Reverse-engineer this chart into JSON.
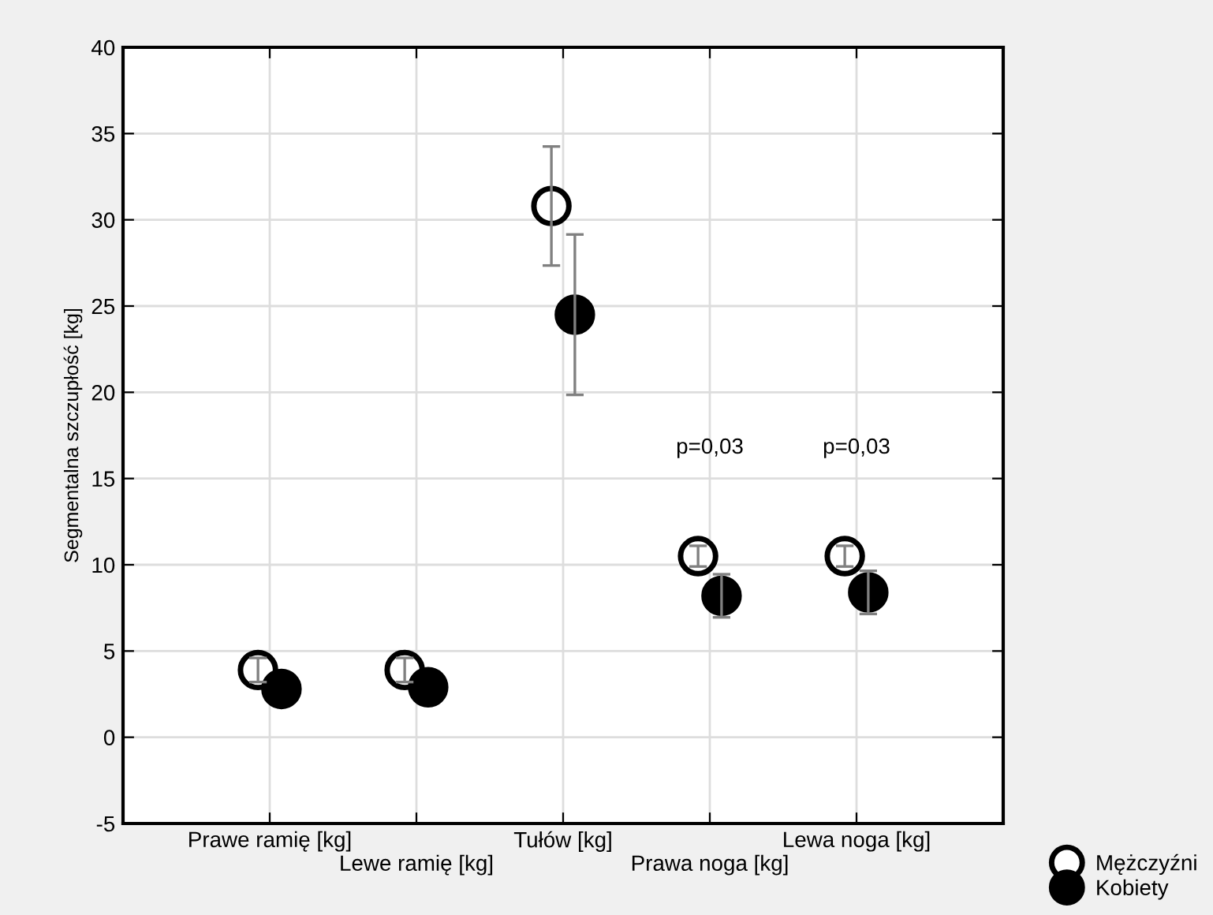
{
  "chart_data": {
    "type": "scatter",
    "ylabel": "Segmentalna szczupłość [kg]",
    "categories": [
      "Prawe ramię [kg]",
      "Lewe ramię [kg]",
      "Tułów [kg]",
      "Prawa noga [kg]",
      "Lewa noga [kg]"
    ],
    "series": [
      {
        "name": "Mężczyźni",
        "color": "#ffffff",
        "values": [
          3.9,
          3.9,
          30.8,
          10.5,
          10.5
        ],
        "errors": [
          0.7,
          0.7,
          3.45,
          0.6,
          0.6
        ]
      },
      {
        "name": "Kobiety",
        "color": "#000000",
        "values": [
          2.8,
          2.9,
          24.5,
          8.2,
          8.4
        ],
        "errors": [
          null,
          null,
          4.65,
          1.25,
          1.25
        ]
      }
    ],
    "ylim": [
      -5,
      40
    ],
    "yticks": [
      -5,
      0,
      5,
      10,
      15,
      20,
      25,
      30,
      35,
      40
    ],
    "grid": true,
    "marker": "circle",
    "legend": "bottom right",
    "annotations": [
      "p=0,03",
      "p=0,03"
    ]
  }
}
